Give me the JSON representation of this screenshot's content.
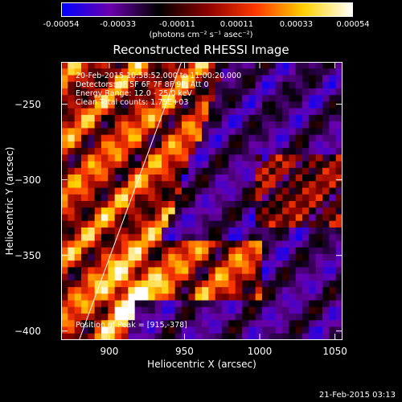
{
  "chart_data": {
    "type": "heatmap",
    "title": "Reconstructed RHESSI Image",
    "xlabel": "Heliocentric X (arcsec)",
    "ylabel": "Heliocentric Y (arcsec)",
    "xlim": [
      868,
      1055
    ],
    "ylim": [
      -406,
      -222
    ],
    "x_ticks": [
      900,
      950,
      1000,
      1050
    ],
    "y_ticks": [
      -250,
      -300,
      -350,
      -400
    ],
    "colorbar": {
      "range": [
        -0.00054,
        0.00054
      ],
      "ticks": [
        "-0.00054",
        "-0.00033",
        "-0.00011",
        "0.00011",
        "0.00033",
        "0.00054"
      ],
      "tick_values": [
        -0.00054,
        -0.00033,
        -0.00011,
        0.00011,
        0.00033,
        0.00054
      ],
      "unit_label": "(photons cm⁻² s⁻¹ asec⁻²)",
      "colors": [
        "#0000ff",
        "#6a00ab",
        "#000000",
        "#8a0000",
        "#ff3800",
        "#ffd000",
        "#ffffff"
      ]
    },
    "limb_line": [
      [
        880,
        -406
      ],
      [
        948,
        -222
      ]
    ],
    "annotations": [
      "20-Feb-2015 10:58:52.000 to 11:00:20.000",
      "Detectors: 3F 5F 6F 7F 8F 9F, Att 0",
      "Energy Range: 12.0 - 25.0 keV",
      "Clean    Total counts: 1.75E+03"
    ],
    "peak_label": "Position of Peak = [915,-378]",
    "peak": [
      915,
      -378
    ]
  },
  "footer": {
    "timestamp": "21-Feb-2015 03:13"
  }
}
